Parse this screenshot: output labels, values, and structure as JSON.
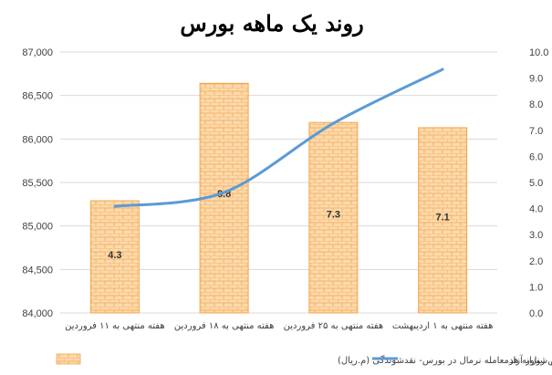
{
  "chart_data": {
    "type": "bar+line",
    "title": "روند یک ماهه بورس",
    "categories": [
      "هفته منتهی به ۱۱ فروردین",
      "هفته منتهی به ۱۸ فروردین",
      "هفته منتهی به ۲۵ فروردین",
      "هفته منتهی به ۱ اردیبهشت"
    ],
    "bar_series": {
      "name": "متوسط ارزش روزانه هرمعامله نرمال در بورس- نقدشوندگی (م.ریال)",
      "values": [
        4.3,
        8.8,
        7.3,
        7.1
      ],
      "data_labels": [
        "4.3",
        "8.8",
        "7.3",
        "7.1"
      ],
      "color": "#fcd5a6",
      "pattern_color": "#f5a54a"
    },
    "line_series": {
      "name": "شاخص شناور آزاد",
      "values": [
        85225,
        85385,
        86180,
        86800
      ],
      "color": "#5b9bd5"
    },
    "left_axis": {
      "ylim": [
        84000,
        87000
      ],
      "ticks": [
        "84,000",
        "84,500",
        "85,000",
        "85,500",
        "86,000",
        "86,500",
        "87,000"
      ]
    },
    "right_axis": {
      "ylim": [
        0,
        10
      ],
      "ticks": [
        "0.0",
        "1.0",
        "2.0",
        "3.0",
        "4.0",
        "5.0",
        "6.0",
        "7.0",
        "8.0",
        "9.0",
        "10.0"
      ]
    },
    "grid": true,
    "legend_position": "bottom"
  }
}
